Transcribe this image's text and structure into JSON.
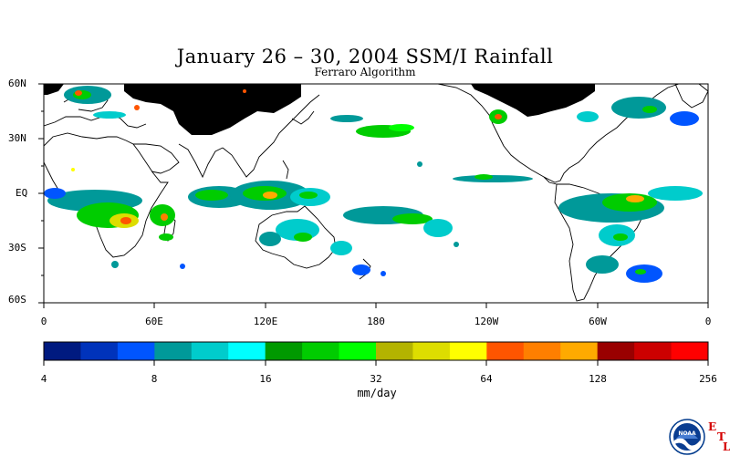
{
  "title": "January 26 – 30, 2004 SSM/I Rainfall",
  "subtitle": "Ferraro Algorithm",
  "lat_labels": [
    "60N",
    "30N",
    "EQ",
    "30S",
    "60S"
  ],
  "lon_labels": [
    "0",
    "60E",
    "120E",
    "180",
    "120W",
    "60W",
    "0"
  ],
  "colorbar": {
    "colors": [
      "#001a80",
      "#0033bb",
      "#0055ff",
      "#009999",
      "#00cccc",
      "#00ffff",
      "#009900",
      "#00cc00",
      "#00ff00",
      "#b3b300",
      "#dddd00",
      "#ffff00",
      "#ff5500",
      "#ff7f00",
      "#ffaa00",
      "#990000",
      "#cc0000",
      "#ff0000"
    ],
    "tick_labels": [
      "4",
      "8",
      "16",
      "32",
      "64",
      "128",
      "256"
    ],
    "units": "mm/day"
  },
  "logo": {
    "icon": "noaa-logo-icon",
    "text": "NOAA",
    "etl": [
      "E",
      "T",
      "L"
    ]
  }
}
